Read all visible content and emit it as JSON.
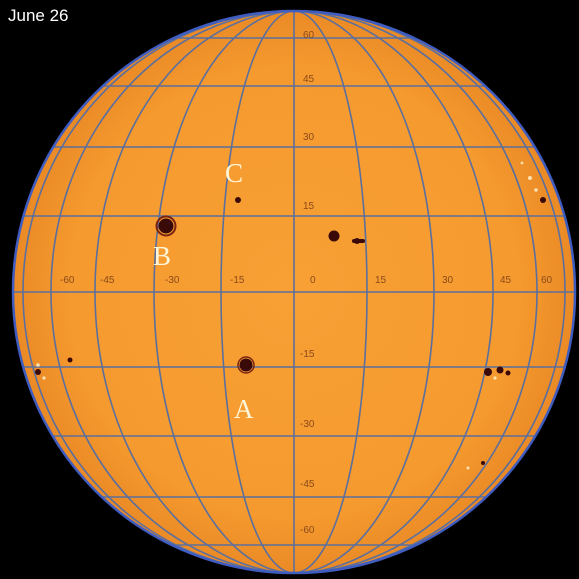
{
  "date": "June 26",
  "longitude_ticks": [
    "-60",
    "-45",
    "-30",
    "-15",
    "0",
    "15",
    "30",
    "45",
    "60"
  ],
  "latitude_ticks": [
    "60",
    "45",
    "30",
    "15",
    "-15",
    "-30",
    "-45",
    "-60"
  ],
  "sunspot_labels": [
    "C",
    "B",
    "A"
  ],
  "colors": {
    "background": "#000000",
    "photosphere": "#f59a2e",
    "grid": "#5b6f9e",
    "limb": "#3f5cc0",
    "spot": "#3a0a08",
    "label": "#fff6d8"
  }
}
